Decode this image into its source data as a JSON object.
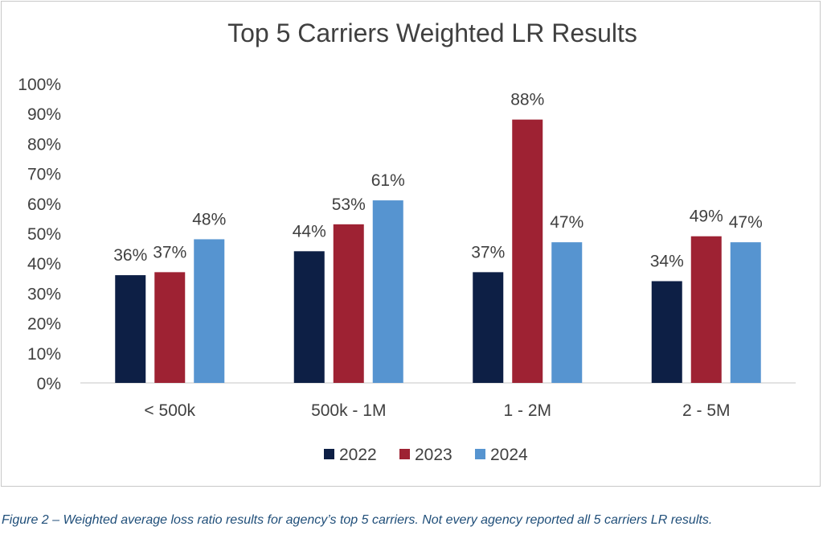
{
  "chart_data": {
    "type": "bar",
    "title": "Top 5 Carriers Weighted LR Results",
    "categories": [
      "< 500k",
      "500k - 1M",
      "1 - 2M",
      "2 - 5M"
    ],
    "series": [
      {
        "name": "2022",
        "color": "#0d1f45",
        "values": [
          36,
          44,
          37,
          34
        ],
        "labels": [
          "36%",
          "44%",
          "37%",
          "34%"
        ]
      },
      {
        "name": "2023",
        "color": "#9e2233",
        "values": [
          37,
          53,
          88,
          49
        ],
        "labels": [
          "37%",
          "53%",
          "88%",
          "49%"
        ]
      },
      {
        "name": "2024",
        "color": "#5694d0",
        "values": [
          48,
          61,
          47,
          47
        ],
        "labels": [
          "48%",
          "61%",
          "47%",
          "47%"
        ]
      }
    ],
    "ylim": [
      0,
      100
    ],
    "y_ticks": [
      0,
      10,
      20,
      30,
      40,
      50,
      60,
      70,
      80,
      90,
      100
    ],
    "y_tick_labels": [
      "0%",
      "10%",
      "20%",
      "30%",
      "40%",
      "50%",
      "60%",
      "70%",
      "80%",
      "90%",
      "100%"
    ],
    "grid": false,
    "legend_position": "bottom"
  },
  "caption": "Figure 2 – Weighted average loss ratio results for agency’s top 5 carriers. Not every agency reported all 5 carriers LR results."
}
